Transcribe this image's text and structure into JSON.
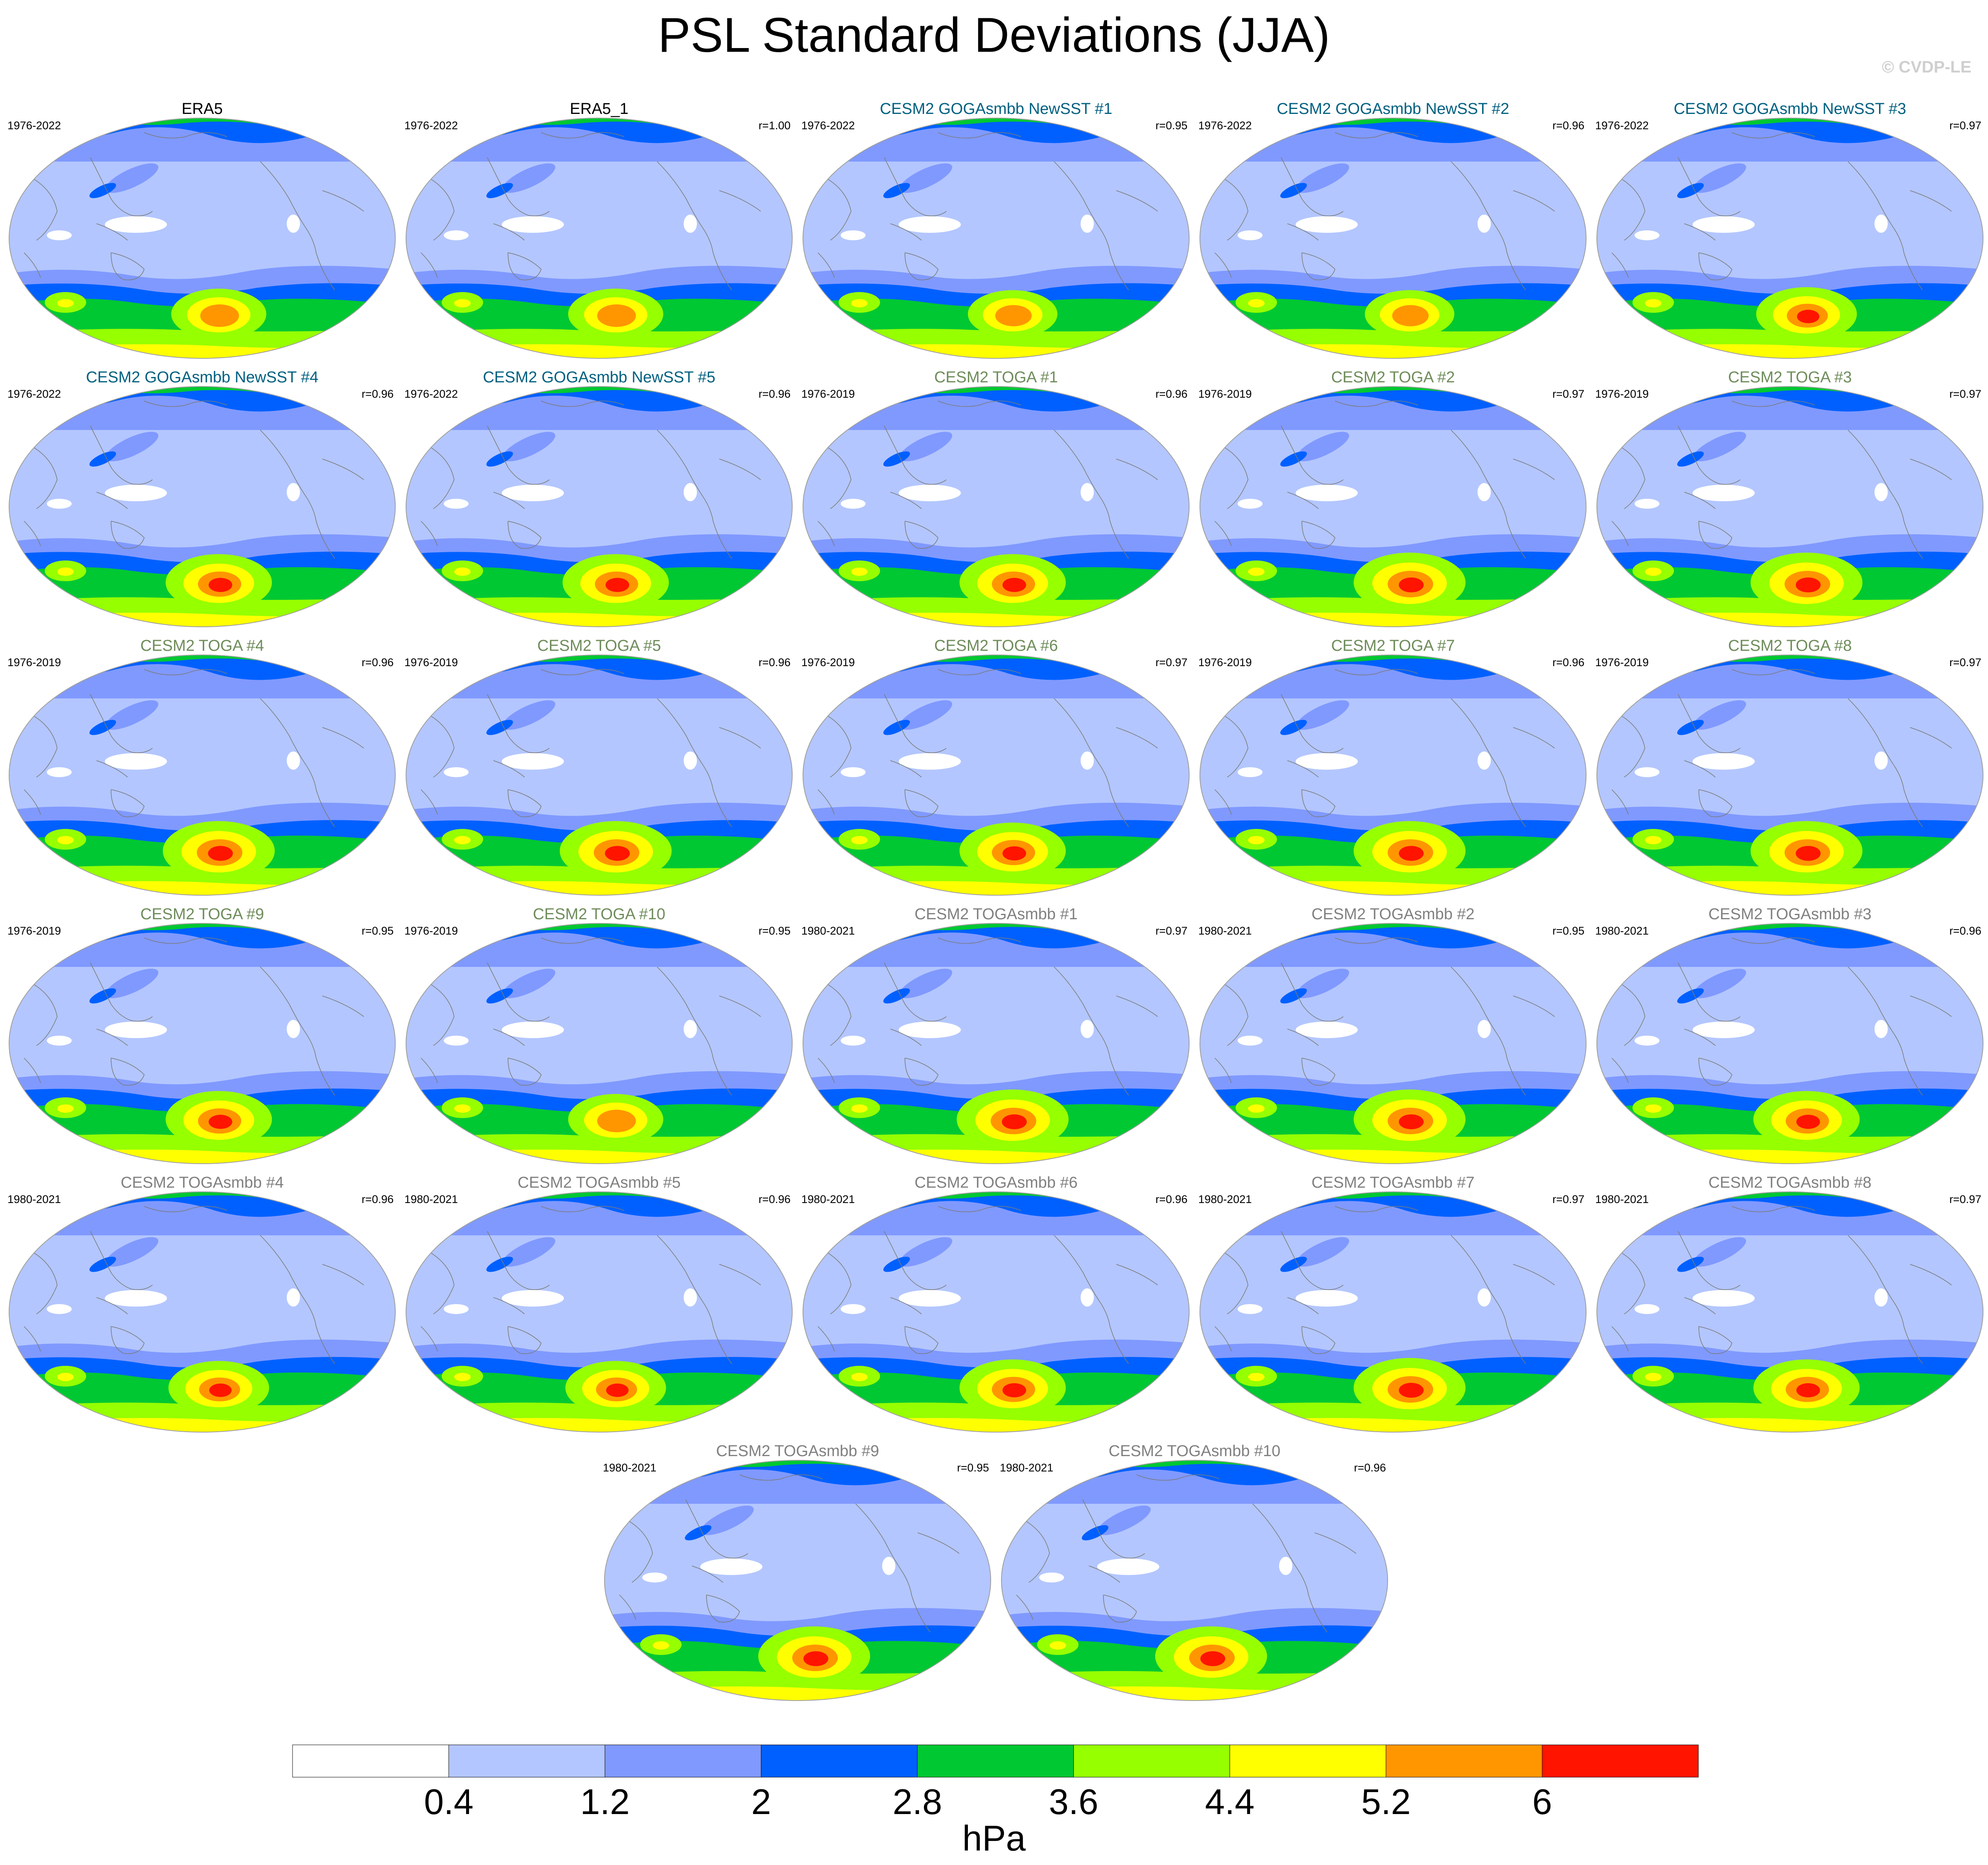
{
  "title": "PSL Standard Deviations (JJA)",
  "copyright": "© CVDP-LE",
  "colorbar": {
    "units": "hPa",
    "tick_labels": [
      "0.4",
      "1.2",
      "2",
      "2.8",
      "3.6",
      "4.4",
      "5.2",
      "6"
    ],
    "levels": [
      0.4,
      1.2,
      2,
      2.8,
      3.6,
      4.4,
      5.2,
      6
    ],
    "colors": [
      "#ffffff",
      "#b3c6ff",
      "#8099ff",
      "#0060ff",
      "#00c832",
      "#96ff00",
      "#ffff00",
      "#ff9600",
      "#ff1400"
    ]
  },
  "title_colors": {
    "observations": "#000000",
    "goga": "#006080",
    "toga": "#6e8c5a",
    "togasmbb": "#808080"
  },
  "panels": [
    {
      "title": "ERA5",
      "period": "1976-2022",
      "r": "",
      "group": "observations",
      "intensity": 0.85
    },
    {
      "title": "ERA5_1",
      "period": "1976-2022",
      "r": "r=1.00",
      "group": "observations",
      "intensity": 0.85
    },
    {
      "title": "CESM2 GOGAsmbb NewSST #1",
      "period": "1976-2022",
      "r": "r=0.95",
      "group": "goga",
      "intensity": 0.8
    },
    {
      "title": "CESM2 GOGAsmbb NewSST #2",
      "period": "1976-2022",
      "r": "r=0.96",
      "group": "goga",
      "intensity": 0.8
    },
    {
      "title": "CESM2 GOGAsmbb NewSST #3",
      "period": "1976-2022",
      "r": "r=0.97",
      "group": "goga",
      "intensity": 0.9
    },
    {
      "title": "CESM2 GOGAsmbb NewSST #4",
      "period": "1976-2022",
      "r": "r=0.96",
      "group": "goga",
      "intensity": 0.95
    },
    {
      "title": "CESM2 GOGAsmbb NewSST #5",
      "period": "1976-2022",
      "r": "r=0.96",
      "group": "goga",
      "intensity": 0.95
    },
    {
      "title": "CESM2 TOGA #1",
      "period": "1976-2019",
      "r": "r=0.96",
      "group": "toga",
      "intensity": 0.95
    },
    {
      "title": "CESM2 TOGA #2",
      "period": "1976-2019",
      "r": "r=0.97",
      "group": "toga",
      "intensity": 1.0
    },
    {
      "title": "CESM2 TOGA #3",
      "period": "1976-2019",
      "r": "r=0.97",
      "group": "toga",
      "intensity": 1.0
    },
    {
      "title": "CESM2 TOGA #4",
      "period": "1976-2019",
      "r": "r=0.96",
      "group": "toga",
      "intensity": 1.0
    },
    {
      "title": "CESM2 TOGA #5",
      "period": "1976-2019",
      "r": "r=0.96",
      "group": "toga",
      "intensity": 1.0
    },
    {
      "title": "CESM2 TOGA #6",
      "period": "1976-2019",
      "r": "r=0.97",
      "group": "toga",
      "intensity": 0.95
    },
    {
      "title": "CESM2 TOGA #7",
      "period": "1976-2019",
      "r": "r=0.96",
      "group": "toga",
      "intensity": 1.0
    },
    {
      "title": "CESM2 TOGA #8",
      "period": "1976-2019",
      "r": "r=0.97",
      "group": "toga",
      "intensity": 1.0
    },
    {
      "title": "CESM2 TOGA #9",
      "period": "1976-2019",
      "r": "r=0.95",
      "group": "toga",
      "intensity": 0.95
    },
    {
      "title": "CESM2 TOGA #10",
      "period": "1976-2019",
      "r": "r=0.95",
      "group": "toga",
      "intensity": 0.85
    },
    {
      "title": "CESM2 TOGAsmbb #1",
      "period": "1980-2021",
      "r": "r=0.97",
      "group": "togasmbb",
      "intensity": 1.0
    },
    {
      "title": "CESM2 TOGAsmbb #2",
      "period": "1980-2021",
      "r": "r=0.95",
      "group": "togasmbb",
      "intensity": 1.0
    },
    {
      "title": "CESM2 TOGAsmbb #3",
      "period": "1980-2021",
      "r": "r=0.96",
      "group": "togasmbb",
      "intensity": 0.95
    },
    {
      "title": "CESM2 TOGAsmbb #4",
      "period": "1980-2021",
      "r": "r=0.96",
      "group": "togasmbb",
      "intensity": 0.9
    },
    {
      "title": "CESM2 TOGAsmbb #5",
      "period": "1980-2021",
      "r": "r=0.96",
      "group": "togasmbb",
      "intensity": 0.9
    },
    {
      "title": "CESM2 TOGAsmbb #6",
      "period": "1980-2021",
      "r": "r=0.96",
      "group": "togasmbb",
      "intensity": 0.95
    },
    {
      "title": "CESM2 TOGAsmbb #7",
      "period": "1980-2021",
      "r": "r=0.97",
      "group": "togasmbb",
      "intensity": 1.0
    },
    {
      "title": "CESM2 TOGAsmbb #8",
      "period": "1980-2021",
      "r": "r=0.97",
      "group": "togasmbb",
      "intensity": 0.95
    },
    {
      "title": "CESM2 TOGAsmbb #9",
      "period": "1980-2021",
      "r": "r=0.95",
      "group": "togasmbb",
      "intensity": 1.0
    },
    {
      "title": "CESM2 TOGAsmbb #10",
      "period": "1980-2021",
      "r": "r=0.96",
      "group": "togasmbb",
      "intensity": 1.0
    }
  ]
}
